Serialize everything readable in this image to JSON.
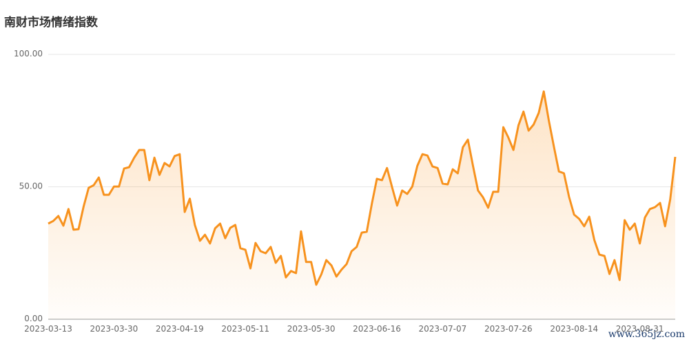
{
  "chart_data": {
    "type": "area",
    "title": "南财市场情绪指数",
    "watermark": "www.365jz.com",
    "categories": [
      "2023-03-13",
      null,
      null,
      null,
      null,
      null,
      null,
      null,
      null,
      null,
      null,
      null,
      null,
      "2023-03-30",
      null,
      null,
      null,
      null,
      null,
      null,
      null,
      null,
      null,
      null,
      null,
      null,
      "2023-04-19",
      null,
      null,
      null,
      null,
      null,
      null,
      null,
      null,
      null,
      null,
      null,
      null,
      "2023-05-11",
      null,
      null,
      null,
      null,
      null,
      null,
      null,
      null,
      null,
      null,
      null,
      null,
      "2023-05-30",
      null,
      null,
      null,
      null,
      null,
      null,
      null,
      null,
      null,
      null,
      null,
      null,
      "2023-06-16",
      null,
      null,
      null,
      null,
      null,
      null,
      null,
      null,
      null,
      null,
      null,
      null,
      "2023-07-07",
      null,
      null,
      null,
      null,
      null,
      null,
      null,
      null,
      null,
      null,
      null,
      null,
      "2023-07-26",
      null,
      null,
      null,
      null,
      null,
      null,
      null,
      null,
      null,
      null,
      null,
      null,
      "2023-08-14",
      null,
      null,
      null,
      null,
      null,
      null,
      null,
      null,
      null,
      null,
      null,
      null,
      "2023-08-31",
      null,
      null,
      null,
      null,
      null,
      null,
      null
    ],
    "values": [
      36.1,
      37.1,
      39,
      35.3,
      41.6,
      33.8,
      34,
      42.6,
      49.6,
      50.6,
      53.5,
      47,
      47,
      50.1,
      50.1,
      56.9,
      57.4,
      61,
      63.9,
      63.9,
      52.5,
      61,
      54.5,
      59,
      57.7,
      61.6,
      62.3,
      40.5,
      45.5,
      35.6,
      29.6,
      31.9,
      28.6,
      34.3,
      36.1,
      30.6,
      34.5,
      35.6,
      26.8,
      26.2,
      19.2,
      28.8,
      25.7,
      24.9,
      27.3,
      21.3,
      23.9,
      15.8,
      18.2,
      17.4,
      33.2,
      21.6,
      21.6,
      13,
      16.9,
      22.3,
      20.3,
      16.1,
      18.7,
      20.8,
      25.7,
      27.3,
      32.7,
      33,
      43.6,
      53,
      52.5,
      57.1,
      49.9,
      42.9,
      48.6,
      47.3,
      50.1,
      57.9,
      62.3,
      61.8,
      57.7,
      57.1,
      51.2,
      50.9,
      56.6,
      55.1,
      64.9,
      67.8,
      57.9,
      48.6,
      46,
      42.1,
      48.1,
      48.1,
      72.5,
      68.6,
      63.9,
      73.2,
      78.4,
      71.2,
      73.5,
      77.9,
      86,
      75.1,
      65.2,
      55.8,
      55.1,
      46.2,
      39.5,
      37.9,
      35.1,
      38.7,
      29.9,
      24.4,
      23.9,
      17.1,
      22.3,
      14.8,
      37.4,
      33.8,
      36.1,
      28.6,
      38.4,
      41.6,
      42.3,
      43.9,
      35.1,
      45.2,
      61.3
    ],
    "color": "#f7921e",
    "ylim": [
      0,
      100
    ],
    "yticks": [
      {
        "value": 0,
        "label": "0.00"
      },
      {
        "value": 50,
        "label": "50.00"
      },
      {
        "value": 100,
        "label": "100.00"
      }
    ],
    "grid": true
  }
}
